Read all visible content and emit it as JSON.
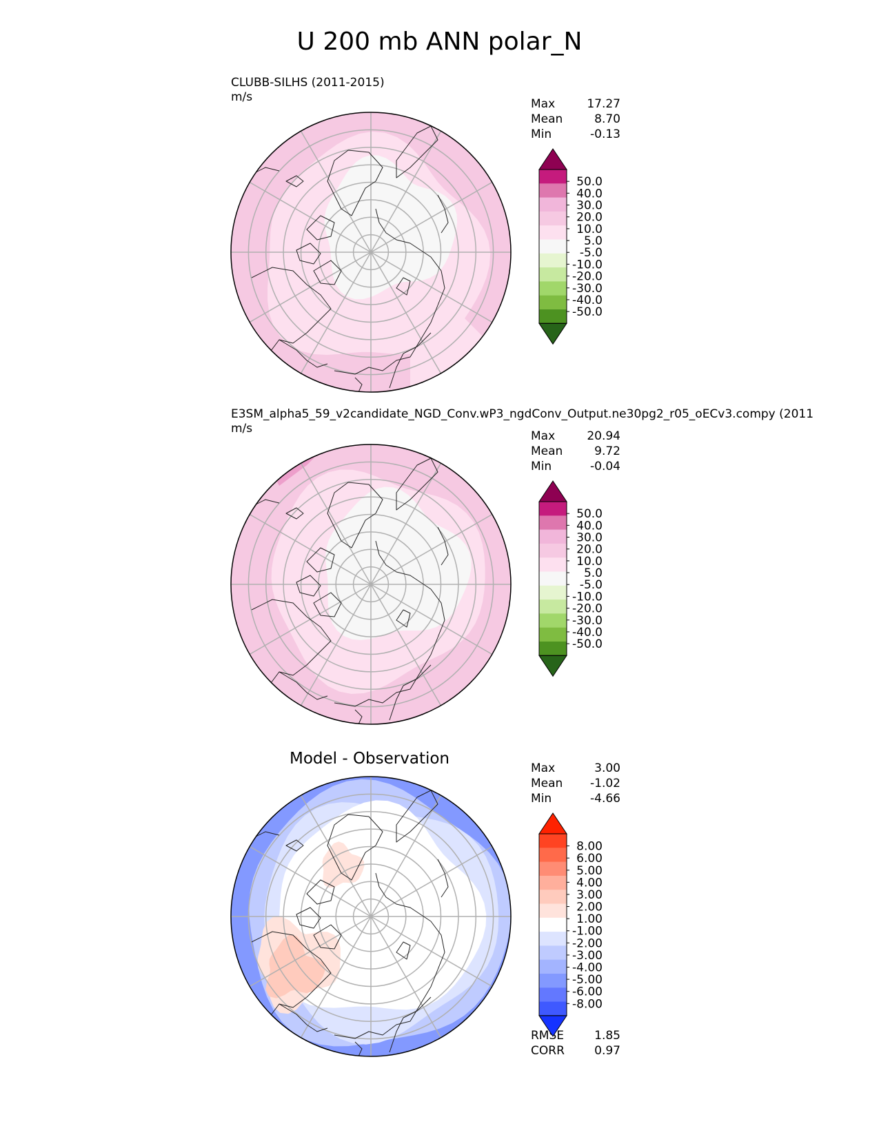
{
  "figure_title": "U 200 mb ANN polar_N",
  "panels": [
    {
      "id": "test",
      "title_line1": "CLUBB-SILHS (2011-2015)",
      "title_line2": "m/s",
      "stats": [
        {
          "label": "Max",
          "value": "17.27"
        },
        {
          "label": "Mean",
          "value": "8.70"
        },
        {
          "label": "Min",
          "value": "-0.13"
        }
      ]
    },
    {
      "id": "reference",
      "title_line1": "E3SM_alpha5_59_v2candidate_NGD_Conv.wP3_ngdConv_Output.ne30pg2_r05_oECv3.compy (2011",
      "title_line2": "m/s",
      "stats": [
        {
          "label": "Max",
          "value": "20.94"
        },
        {
          "label": "Mean",
          "value": "9.72"
        },
        {
          "label": "Min",
          "value": "-0.04"
        }
      ]
    },
    {
      "id": "difference",
      "title": "Model - Observation",
      "stats": [
        {
          "label": "Max",
          "value": "3.00"
        },
        {
          "label": "Mean",
          "value": "-1.02"
        },
        {
          "label": "Min",
          "value": "-4.66"
        }
      ],
      "metrics": [
        {
          "label": "RMSE",
          "value": "1.85"
        },
        {
          "label": "CORR",
          "value": "0.97"
        }
      ]
    }
  ],
  "colorbars": {
    "main": {
      "labels": [
        "50.0",
        "40.0",
        "30.0",
        "20.0",
        "10.0",
        "5.0",
        "-5.0",
        "-10.0",
        "-20.0",
        "-30.0",
        "-40.0",
        "-50.0"
      ],
      "colors": [
        "#8e0152",
        "#c51b7d",
        "#de77ae",
        "#f1b6da",
        "#f6c9e2",
        "#fde0ef",
        "#f7f7f7",
        "#e6f5d0",
        "#c7e9a0",
        "#a1d76a",
        "#7fbc41",
        "#4d9221",
        "#276419"
      ]
    },
    "diff": {
      "labels": [
        "8.00",
        "6.00",
        "5.00",
        "4.00",
        "3.00",
        "2.00",
        "1.00",
        "-1.00",
        "-2.00",
        "-3.00",
        "-4.00",
        "-5.00",
        "-6.00",
        "-8.00"
      ],
      "colors": [
        "#ff2200",
        "#ff4422",
        "#ff6a4a",
        "#ff8c74",
        "#ffaf9c",
        "#ffcbbd",
        "#ffe3dc",
        "#ffffff",
        "#dde4ff",
        "#bfcbff",
        "#a3b4ff",
        "#8399ff",
        "#6378ff",
        "#3f59ff",
        "#1533ff"
      ]
    }
  },
  "fields": {
    "test": {
      "outer": "#f6c9e2",
      "middle": "#fde0ef",
      "inner": "#f7f7f7"
    },
    "reference": {
      "outer": "#f6c9e2",
      "middle": "#fde0ef",
      "inner": "#f7f7f7",
      "jet_max": "#ed9fcb"
    },
    "difference": {
      "base": "#ffffff",
      "weak_neg": "#dde4ff",
      "mid_neg": "#bfcbff",
      "strong_neg": "#8399ff",
      "weak_pos": "#ffe3dc",
      "mid_pos": "#ffcbbd"
    }
  }
}
